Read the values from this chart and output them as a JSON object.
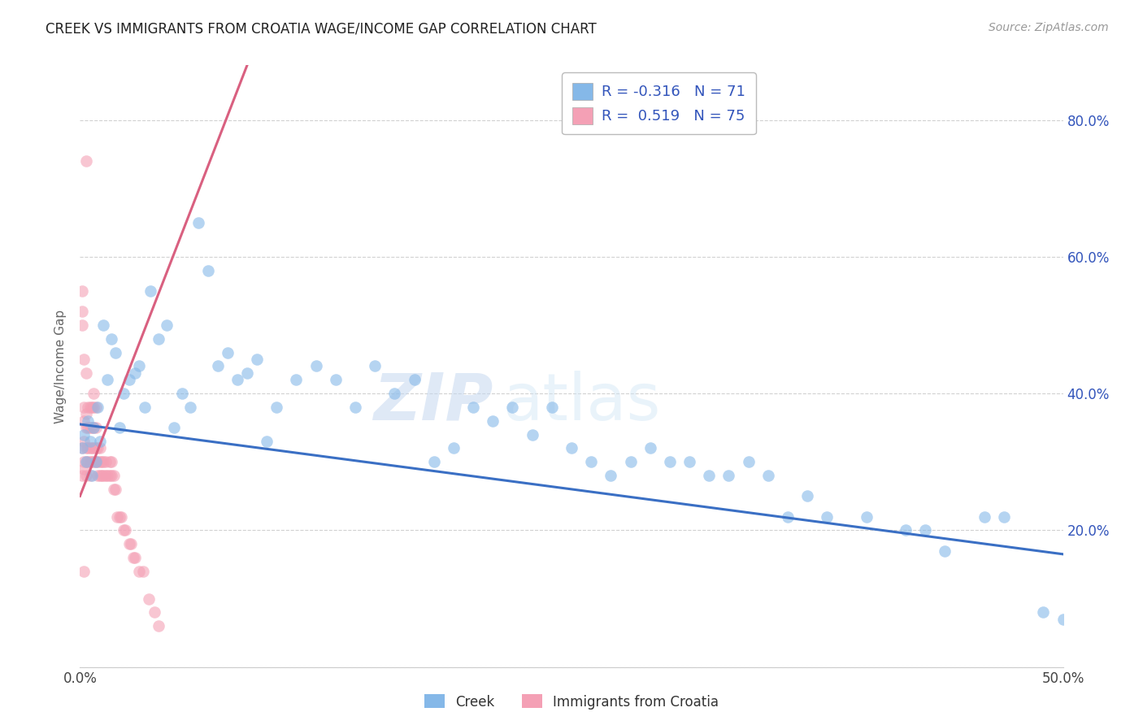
{
  "title": "CREEK VS IMMIGRANTS FROM CROATIA WAGE/INCOME GAP CORRELATION CHART",
  "source": "Source: ZipAtlas.com",
  "ylabel": "Wage/Income Gap",
  "watermark_zip": "ZIP",
  "watermark_atlas": "atlas",
  "xlim": [
    0.0,
    0.5
  ],
  "ylim": [
    0.0,
    0.88
  ],
  "creek_color": "#85B8E8",
  "croatia_color": "#F4A0B5",
  "creek_line_color": "#3A6FC4",
  "croatia_line_color": "#D96080",
  "creek_R": -0.316,
  "creek_N": 71,
  "croatia_R": 0.519,
  "croatia_N": 75,
  "background_color": "#ffffff",
  "grid_color": "#cccccc",
  "legend_text_color": "#3355BB",
  "axis_label_color": "#3355BB",
  "title_color": "#222222",
  "creek_x": [
    0.001,
    0.002,
    0.003,
    0.004,
    0.005,
    0.006,
    0.007,
    0.008,
    0.009,
    0.01,
    0.012,
    0.014,
    0.016,
    0.018,
    0.02,
    0.022,
    0.025,
    0.028,
    0.03,
    0.033,
    0.036,
    0.04,
    0.044,
    0.048,
    0.052,
    0.056,
    0.06,
    0.065,
    0.07,
    0.075,
    0.08,
    0.085,
    0.09,
    0.095,
    0.1,
    0.11,
    0.12,
    0.13,
    0.14,
    0.15,
    0.16,
    0.17,
    0.18,
    0.19,
    0.2,
    0.21,
    0.22,
    0.23,
    0.24,
    0.25,
    0.26,
    0.27,
    0.28,
    0.29,
    0.3,
    0.31,
    0.32,
    0.33,
    0.34,
    0.35,
    0.36,
    0.37,
    0.38,
    0.4,
    0.42,
    0.43,
    0.44,
    0.46,
    0.47,
    0.49,
    0.5
  ],
  "creek_y": [
    0.32,
    0.34,
    0.3,
    0.36,
    0.33,
    0.28,
    0.35,
    0.3,
    0.38,
    0.33,
    0.5,
    0.42,
    0.48,
    0.46,
    0.35,
    0.4,
    0.42,
    0.43,
    0.44,
    0.38,
    0.55,
    0.48,
    0.5,
    0.35,
    0.4,
    0.38,
    0.65,
    0.58,
    0.44,
    0.46,
    0.42,
    0.43,
    0.45,
    0.33,
    0.38,
    0.42,
    0.44,
    0.42,
    0.38,
    0.44,
    0.4,
    0.42,
    0.3,
    0.32,
    0.38,
    0.36,
    0.38,
    0.34,
    0.38,
    0.32,
    0.3,
    0.28,
    0.3,
    0.32,
    0.3,
    0.3,
    0.28,
    0.28,
    0.3,
    0.28,
    0.22,
    0.25,
    0.22,
    0.22,
    0.2,
    0.2,
    0.17,
    0.22,
    0.22,
    0.08,
    0.07
  ],
  "croatia_x": [
    0.001,
    0.001,
    0.001,
    0.001,
    0.002,
    0.002,
    0.002,
    0.002,
    0.002,
    0.003,
    0.003,
    0.003,
    0.003,
    0.003,
    0.004,
    0.004,
    0.004,
    0.004,
    0.005,
    0.005,
    0.005,
    0.005,
    0.005,
    0.006,
    0.006,
    0.006,
    0.006,
    0.007,
    0.007,
    0.007,
    0.007,
    0.007,
    0.008,
    0.008,
    0.008,
    0.008,
    0.009,
    0.009,
    0.009,
    0.01,
    0.01,
    0.01,
    0.011,
    0.011,
    0.012,
    0.012,
    0.013,
    0.013,
    0.014,
    0.015,
    0.015,
    0.016,
    0.016,
    0.017,
    0.017,
    0.018,
    0.019,
    0.02,
    0.021,
    0.022,
    0.023,
    0.025,
    0.026,
    0.027,
    0.028,
    0.03,
    0.032,
    0.035,
    0.038,
    0.04,
    0.001,
    0.002,
    0.003,
    0.003,
    0.002
  ],
  "croatia_y": [
    0.32,
    0.28,
    0.5,
    0.52,
    0.29,
    0.3,
    0.33,
    0.36,
    0.38,
    0.28,
    0.3,
    0.32,
    0.35,
    0.37,
    0.3,
    0.32,
    0.35,
    0.38,
    0.28,
    0.3,
    0.32,
    0.35,
    0.38,
    0.3,
    0.32,
    0.35,
    0.38,
    0.3,
    0.32,
    0.35,
    0.38,
    0.4,
    0.3,
    0.32,
    0.35,
    0.38,
    0.28,
    0.3,
    0.32,
    0.28,
    0.3,
    0.32,
    0.28,
    0.3,
    0.28,
    0.3,
    0.28,
    0.3,
    0.28,
    0.28,
    0.3,
    0.28,
    0.3,
    0.26,
    0.28,
    0.26,
    0.22,
    0.22,
    0.22,
    0.2,
    0.2,
    0.18,
    0.18,
    0.16,
    0.16,
    0.14,
    0.14,
    0.1,
    0.08,
    0.06,
    0.55,
    0.45,
    0.43,
    0.74,
    0.14
  ],
  "creek_trend_x": [
    0.0,
    0.5
  ],
  "creek_trend_y": [
    0.355,
    0.165
  ],
  "croatia_trend_x": [
    0.0,
    0.085
  ],
  "croatia_trend_y": [
    0.25,
    0.88
  ]
}
